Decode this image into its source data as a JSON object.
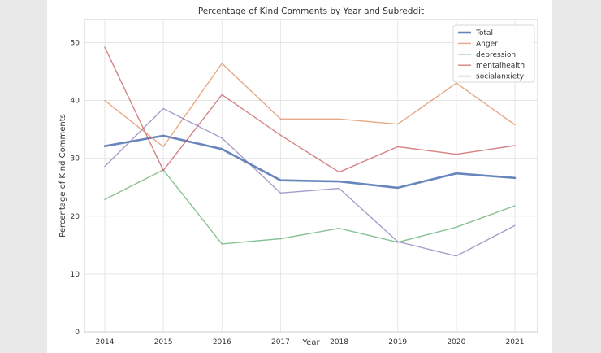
{
  "chart_data": {
    "type": "line",
    "title": "Percentage of Kind Comments by Year and Subreddit",
    "xlabel": "Year",
    "ylabel": "Percentage of Kind Comments",
    "x": [
      "2014",
      "2015",
      "2016",
      "2017",
      "2018",
      "2019",
      "2020",
      "2021"
    ],
    "ylim": [
      0,
      54
    ],
    "yticks": [
      "0",
      "10",
      "20",
      "30",
      "40",
      "50"
    ],
    "grid": true,
    "legend_position": "top-right",
    "series": [
      {
        "name": "Total",
        "color": "#4c72b0",
        "values": [
          32.1,
          33.9,
          31.6,
          26.2,
          26.0,
          24.9,
          27.4,
          26.6
        ]
      },
      {
        "name": "Anger",
        "color": "#dd8452",
        "values": [
          40.0,
          32.0,
          46.4,
          36.8,
          36.8,
          35.9,
          43.0,
          35.8
        ]
      },
      {
        "name": "depression",
        "color": "#55a868",
        "values": [
          22.9,
          28.0,
          15.2,
          16.1,
          17.9,
          15.5,
          18.1,
          21.8
        ]
      },
      {
        "name": "mentalhealth",
        "color": "#c44e52",
        "values": [
          49.2,
          27.9,
          41.0,
          34.0,
          27.6,
          32.0,
          30.7,
          32.2
        ]
      },
      {
        "name": "socialanxiety",
        "color": "#8172b3",
        "values": [
          28.6,
          38.6,
          33.5,
          24.0,
          24.8,
          15.6,
          13.1,
          18.4
        ]
      }
    ]
  }
}
